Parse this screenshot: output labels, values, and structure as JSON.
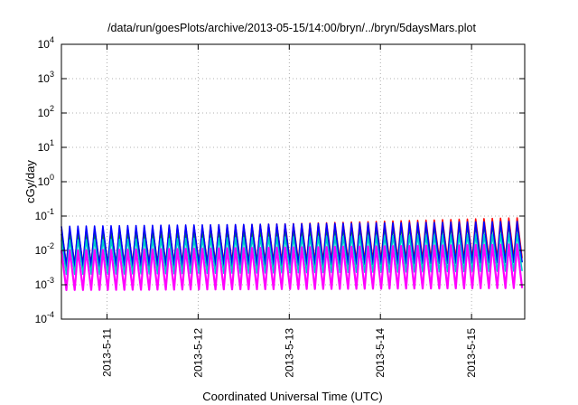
{
  "chart_data": {
    "type": "line",
    "title": "/data/run/goesPlots/archive/2013-05-15/14:00/bryn/../bryn/5daysMars.plot",
    "xlabel": "Coordinated Universal Time (UTC)",
    "ylabel": "cGy/day",
    "yscale": "log",
    "ylim": [
      0.0001,
      10000
    ],
    "y_ticks": [
      {
        "base": "10",
        "exp": "-4",
        "value": 0.0001
      },
      {
        "base": "10",
        "exp": "-3",
        "value": 0.001
      },
      {
        "base": "10",
        "exp": "-2",
        "value": 0.01
      },
      {
        "base": "10",
        "exp": "-1",
        "value": 0.1
      },
      {
        "base": "10",
        "exp": "0",
        "value": 1
      },
      {
        "base": "10",
        "exp": "1",
        "value": 10
      },
      {
        "base": "10",
        "exp": "2",
        "value": 100
      },
      {
        "base": "10",
        "exp": "3",
        "value": 1000
      },
      {
        "base": "10",
        "exp": "4",
        "value": 10000
      }
    ],
    "xlim": [
      "2013-05-10T12:00",
      "2013-05-15T14:00"
    ],
    "x_ticks": [
      {
        "label": "2013-5-11",
        "value": "2013-05-11T00:00"
      },
      {
        "label": "2013-5-12",
        "value": "2013-05-12T00:00"
      },
      {
        "label": "2013-5-13",
        "value": "2013-05-13T00:00"
      },
      {
        "label": "2013-5-14",
        "value": "2013-05-14T00:00"
      },
      {
        "label": "2013-5-15",
        "value": "2013-05-15T00:00"
      }
    ],
    "grid": true,
    "cycles_per_day": 11,
    "series": [
      {
        "color": "#ff0000",
        "peak_start": 0.04,
        "peak_end": 0.09,
        "trough_start": 0.004,
        "trough_end": 0.006
      },
      {
        "color": "#00aa00",
        "peak_start": 0.03,
        "peak_end": 0.06,
        "trough_start": 0.003,
        "trough_end": 0.0045
      },
      {
        "color": "#0000ff",
        "peak_start": 0.05,
        "peak_end": 0.07,
        "trough_start": 0.0035,
        "trough_end": 0.0045
      },
      {
        "color": "#00cccc",
        "peak_start": 0.02,
        "peak_end": 0.03,
        "trough_start": 0.002,
        "trough_end": 0.0025
      },
      {
        "color": "#ff00ff",
        "peak_start": 0.01,
        "peak_end": 0.015,
        "trough_start": 0.0007,
        "trough_end": 0.0008
      }
    ]
  }
}
